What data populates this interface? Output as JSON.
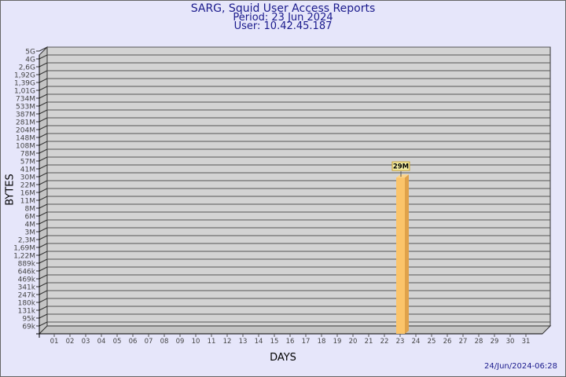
{
  "header": {
    "title": "SARG, Squid User Access Reports",
    "period": "Period: 23 Jun 2024",
    "user": "User: 10.42.45.187"
  },
  "footer": {
    "timestamp": "24/Jun/2024-06:28"
  },
  "chart_data": {
    "type": "bar",
    "xlabel": "DAYS",
    "ylabel": "BYTES",
    "categories": [
      "01",
      "02",
      "03",
      "04",
      "05",
      "06",
      "07",
      "08",
      "09",
      "10",
      "11",
      "12",
      "13",
      "14",
      "15",
      "16",
      "17",
      "18",
      "19",
      "20",
      "21",
      "22",
      "23",
      "24",
      "25",
      "26",
      "27",
      "28",
      "29",
      "30",
      "31"
    ],
    "y_ticks": [
      "5G",
      "4G",
      "2,6G",
      "1,92G",
      "1,39G",
      "1,01G",
      "734M",
      "533M",
      "387M",
      "281M",
      "204M",
      "148M",
      "108M",
      "78M",
      "57M",
      "41M",
      "30M",
      "22M",
      "16M",
      "11M",
      "8M",
      "6M",
      "4M",
      "3M",
      "2,3M",
      "1,69M",
      "1,22M",
      "889k",
      "646k",
      "469k",
      "341k",
      "247k",
      "180k",
      "131k",
      "95k",
      "69k"
    ],
    "y_scale": "log",
    "grid": true,
    "series": [
      {
        "values": [
          null,
          null,
          null,
          null,
          null,
          null,
          null,
          null,
          null,
          null,
          null,
          null,
          null,
          null,
          null,
          null,
          null,
          null,
          null,
          null,
          null,
          null,
          "29M",
          null,
          null,
          null,
          null,
          null,
          null,
          null,
          null
        ]
      }
    ],
    "data_labels": {
      "23": "29M"
    },
    "colors": {
      "bar_front": "#fbc46a",
      "bar_side": "#e0a24a",
      "wall": "#d3d3d3",
      "label_bg": "#f6f0a8",
      "title": "#1a1a8c"
    }
  }
}
